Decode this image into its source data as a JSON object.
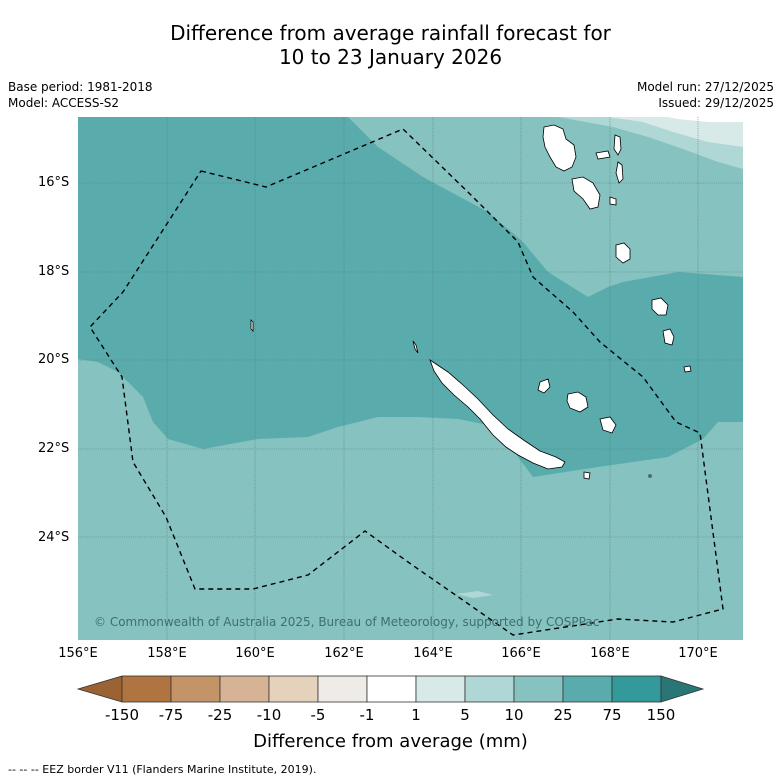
{
  "title": {
    "line1": "Difference from average rainfall forecast for",
    "line2": "10 to 23 January 2026"
  },
  "meta": {
    "base_period": "Base period: 1981-2018",
    "model": "Model: ACCESS-S2",
    "model_run": "Model run: 27/12/2025",
    "issued": "Issued: 29/12/2025"
  },
  "map": {
    "lon_range": [
      156,
      171
    ],
    "lat_range": [
      -26.3,
      -14.5
    ],
    "colors": {
      "cat_1_5": "#d7eae8",
      "cat_5_10": "#aed7d5",
      "cat_10_25": "#86c2bf",
      "cat_25_75": "#5aacac",
      "land": "#ffffff",
      "coast": "#000000"
    },
    "copyright": "© Commonwealth of Australia 2025, Bureau of Meteorology, supported by COSPPac"
  },
  "axes": {
    "lat_labels": [
      "16°S",
      "18°S",
      "20°S",
      "22°S",
      "24°S"
    ],
    "lat_values": [
      -16,
      -18,
      -20,
      -22,
      -24
    ],
    "lon_labels": [
      "156°E",
      "158°E",
      "160°E",
      "162°E",
      "164°E",
      "166°E",
      "168°E",
      "170°E"
    ],
    "lon_values": [
      156,
      158,
      160,
      162,
      164,
      166,
      168,
      170
    ]
  },
  "colorbar": {
    "title": "Difference from average (mm)",
    "tick_labels": [
      "-150",
      "-75",
      "-25",
      "-10",
      "-5",
      "-1",
      "1",
      "5",
      "10",
      "25",
      "75",
      "150"
    ],
    "colors": [
      "#9b6233",
      "#b07440",
      "#c39467",
      "#d5b394",
      "#e5d2bd",
      "#efece8",
      "#ffffff",
      "#d7eae8",
      "#aed7d5",
      "#86c2bf",
      "#5aacac",
      "#33999a",
      "#2a7575"
    ]
  },
  "footnote": "--  --  -- EEZ border V11 (Flanders Marine Institute, 2019)."
}
